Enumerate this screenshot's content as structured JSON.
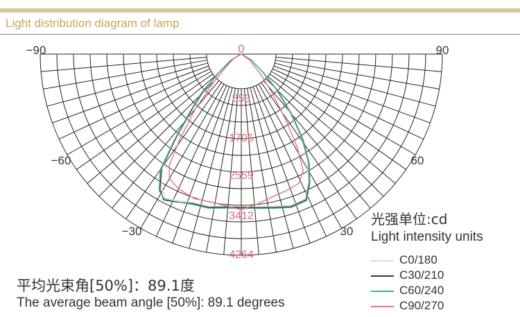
{
  "header": {
    "title": "Light distribution diagram of lamp"
  },
  "chart_data": {
    "type": "polar",
    "angle_labels": {
      "left_90": "−90",
      "right_90": "90",
      "left_60": "−60",
      "right_60": "60",
      "left_30": "−30",
      "right_30": "30",
      "center": "0"
    },
    "radial_labels": [
      "853",
      "1706",
      "2559",
      "3412",
      "4264"
    ],
    "radial_max": 4264,
    "series": [
      {
        "name": "C0/180",
        "color": "#e6dcc2",
        "points": [
          [
            -90,
            0
          ],
          [
            -60,
            240
          ],
          [
            -50,
            620
          ],
          [
            -46,
            1050
          ],
          [
            -42,
            1500
          ],
          [
            -38,
            2200
          ],
          [
            -35,
            2900
          ],
          [
            -31,
            3300
          ],
          [
            -28,
            3450
          ],
          [
            -24,
            3400
          ],
          [
            -18,
            3300
          ],
          [
            -12,
            3300
          ],
          [
            -6,
            3250
          ],
          [
            0,
            3240
          ],
          [
            6,
            3260
          ],
          [
            12,
            3300
          ],
          [
            18,
            3380
          ],
          [
            24,
            3350
          ],
          [
            28,
            3050
          ],
          [
            32,
            2650
          ],
          [
            36,
            2150
          ],
          [
            40,
            1600
          ],
          [
            45,
            1000
          ],
          [
            50,
            560
          ],
          [
            60,
            220
          ],
          [
            90,
            0
          ]
        ]
      },
      {
        "name": "C30/210",
        "color": "#333333",
        "points": [
          [
            -90,
            0
          ],
          [
            -60,
            250
          ],
          [
            -50,
            650
          ],
          [
            -46,
            1100
          ],
          [
            -42,
            1550
          ],
          [
            -38,
            2250
          ],
          [
            -35,
            2950
          ],
          [
            -31,
            3350
          ],
          [
            -28,
            3500
          ],
          [
            -24,
            3430
          ],
          [
            -18,
            3330
          ],
          [
            -12,
            3320
          ],
          [
            -6,
            3260
          ],
          [
            0,
            3250
          ],
          [
            6,
            3270
          ],
          [
            12,
            3320
          ],
          [
            18,
            3400
          ],
          [
            24,
            3380
          ],
          [
            28,
            3080
          ],
          [
            32,
            2700
          ],
          [
            36,
            2200
          ],
          [
            40,
            1650
          ],
          [
            45,
            1050
          ],
          [
            50,
            600
          ],
          [
            60,
            230
          ],
          [
            90,
            0
          ]
        ]
      },
      {
        "name": "C60/240",
        "color": "#3aaea0",
        "points": [
          [
            -90,
            0
          ],
          [
            -60,
            260
          ],
          [
            -50,
            680
          ],
          [
            -46,
            1150
          ],
          [
            -42,
            1600
          ],
          [
            -38,
            2300
          ],
          [
            -35,
            3000
          ],
          [
            -31,
            3380
          ],
          [
            -28,
            3480
          ],
          [
            -24,
            3420
          ],
          [
            -18,
            3350
          ],
          [
            -12,
            3340
          ],
          [
            -6,
            3280
          ],
          [
            0,
            3270
          ],
          [
            6,
            3290
          ],
          [
            12,
            3340
          ],
          [
            18,
            3420
          ],
          [
            24,
            3400
          ],
          [
            28,
            3100
          ],
          [
            32,
            2720
          ],
          [
            36,
            2230
          ],
          [
            40,
            1680
          ],
          [
            45,
            1080
          ],
          [
            50,
            620
          ],
          [
            60,
            240
          ],
          [
            90,
            0
          ]
        ]
      },
      {
        "name": "C90/270",
        "color": "#e3737a",
        "points": [
          [
            -90,
            0
          ],
          [
            -60,
            180
          ],
          [
            -50,
            420
          ],
          [
            -45,
            800
          ],
          [
            -40,
            1500
          ],
          [
            -36,
            2200
          ],
          [
            -33,
            2800
          ],
          [
            -30,
            3050
          ],
          [
            -25,
            3150
          ],
          [
            -18,
            3220
          ],
          [
            -12,
            3200
          ],
          [
            -6,
            3230
          ],
          [
            0,
            3300
          ],
          [
            6,
            3200
          ],
          [
            12,
            3100
          ],
          [
            18,
            3050
          ],
          [
            24,
            3000
          ],
          [
            28,
            2800
          ],
          [
            31,
            2300
          ],
          [
            34,
            1700
          ],
          [
            38,
            1100
          ],
          [
            44,
            600
          ],
          [
            55,
            200
          ],
          [
            90,
            0
          ]
        ]
      }
    ]
  },
  "legend": {
    "title_cn": "光强单位:cd",
    "title_en": "Light intensity units",
    "items": [
      "C0/180",
      "C30/210",
      "C60/240",
      "C90/270"
    ]
  },
  "beam": {
    "cn": "平均光束角[50%]：89.1度",
    "en": "The average beam angle [50%]: 89.1 degrees"
  }
}
